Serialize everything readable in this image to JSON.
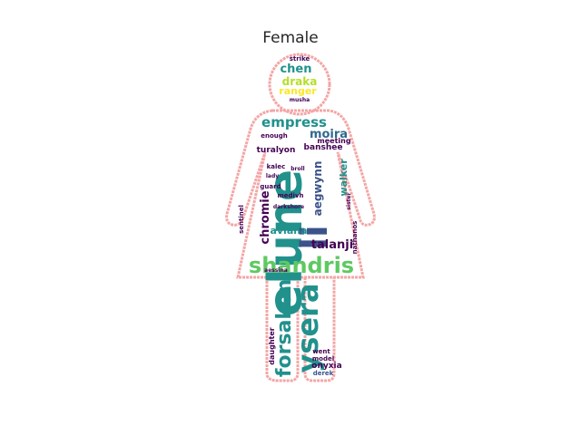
{
  "title": "Female",
  "outline_color": "#f4a6a6",
  "palette": [
    "#440154",
    "#3b528b",
    "#21918c",
    "#5ec962",
    "#b5de2b",
    "#fde725",
    "#31688e",
    "#35b779"
  ],
  "words": [
    "elune",
    "li",
    "shandris",
    "ysera",
    "forsaken",
    "empress",
    "moira",
    "chen",
    "draka",
    "ranger",
    "chromie",
    "aviana",
    "talanji",
    "aegwynn",
    "walker",
    "banshee",
    "turalyon",
    "onyxia",
    "derek",
    "model",
    "daughter",
    "went",
    "kalec",
    "strike",
    "musha",
    "meeting",
    "enough",
    "nathanos",
    "guard",
    "sentinel",
    "medivh",
    "darkshore",
    "broll",
    "aessina",
    "sister",
    "lady"
  ]
}
